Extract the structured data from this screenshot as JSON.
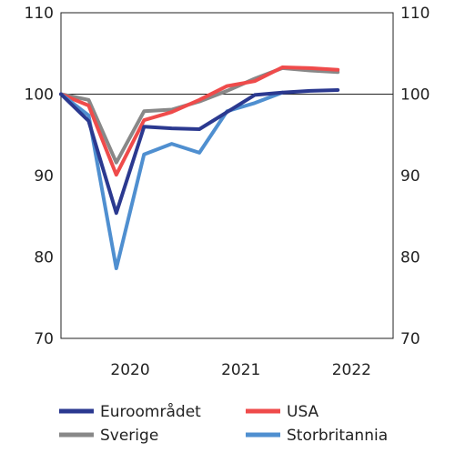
{
  "chart_data": {
    "type": "line",
    "title": "",
    "xlabel": "",
    "ylabel": "",
    "ylim": [
      70,
      110
    ],
    "yticks": [
      70,
      80,
      90,
      100,
      110
    ],
    "y_axis_sides": "both",
    "xlim": [
      "2019 Q4",
      "2022 Q4"
    ],
    "x_ticks": [
      "2020",
      "2021",
      "2022"
    ],
    "grid": false,
    "reference_line": 100,
    "legend_position": "bottom",
    "series": [
      {
        "name": "Euroområdet",
        "color": "#2b3990",
        "x": [
          "2019 Q4",
          "2020 Q1",
          "2020 Q2",
          "2020 Q3",
          "2020 Q4",
          "2021 Q1",
          "2021 Q2",
          "2021 Q3",
          "2021 Q4",
          "2022 Q1",
          "2022 Q2"
        ],
        "values": [
          100,
          96.7,
          85.4,
          96.0,
          95.8,
          95.7,
          97.8,
          99.9,
          100.2,
          100.4,
          100.5
        ]
      },
      {
        "name": "USA",
        "color": "#ef4b4b",
        "x": [
          "2019 Q4",
          "2020 Q1",
          "2020 Q2",
          "2020 Q3",
          "2020 Q4",
          "2021 Q1",
          "2021 Q2",
          "2021 Q3",
          "2021 Q4",
          "2022 Q1",
          "2022 Q2"
        ],
        "values": [
          100,
          98.6,
          90.1,
          96.8,
          97.8,
          99.3,
          101.0,
          101.6,
          103.3,
          103.2,
          103.0
        ]
      },
      {
        "name": "Sverige",
        "color": "#888888",
        "x": [
          "2019 Q4",
          "2020 Q1",
          "2020 Q2",
          "2020 Q3",
          "2020 Q4",
          "2021 Q1",
          "2021 Q2",
          "2021 Q3",
          "2021 Q4",
          "2022 Q1",
          "2022 Q2"
        ],
        "values": [
          100,
          99.3,
          91.6,
          97.9,
          98.1,
          99.1,
          100.4,
          101.9,
          103.2,
          102.9,
          102.7
        ]
      },
      {
        "name": "Storbritannia",
        "color": "#4f8fd0",
        "x": [
          "2019 Q4",
          "2020 Q1",
          "2020 Q2",
          "2020 Q3",
          "2020 Q4",
          "2021 Q1",
          "2021 Q2",
          "2021 Q3",
          "2021 Q4"
        ],
        "values": [
          100,
          97.4,
          78.6,
          92.6,
          93.9,
          92.8,
          97.9,
          98.9,
          100.2
        ]
      }
    ]
  }
}
